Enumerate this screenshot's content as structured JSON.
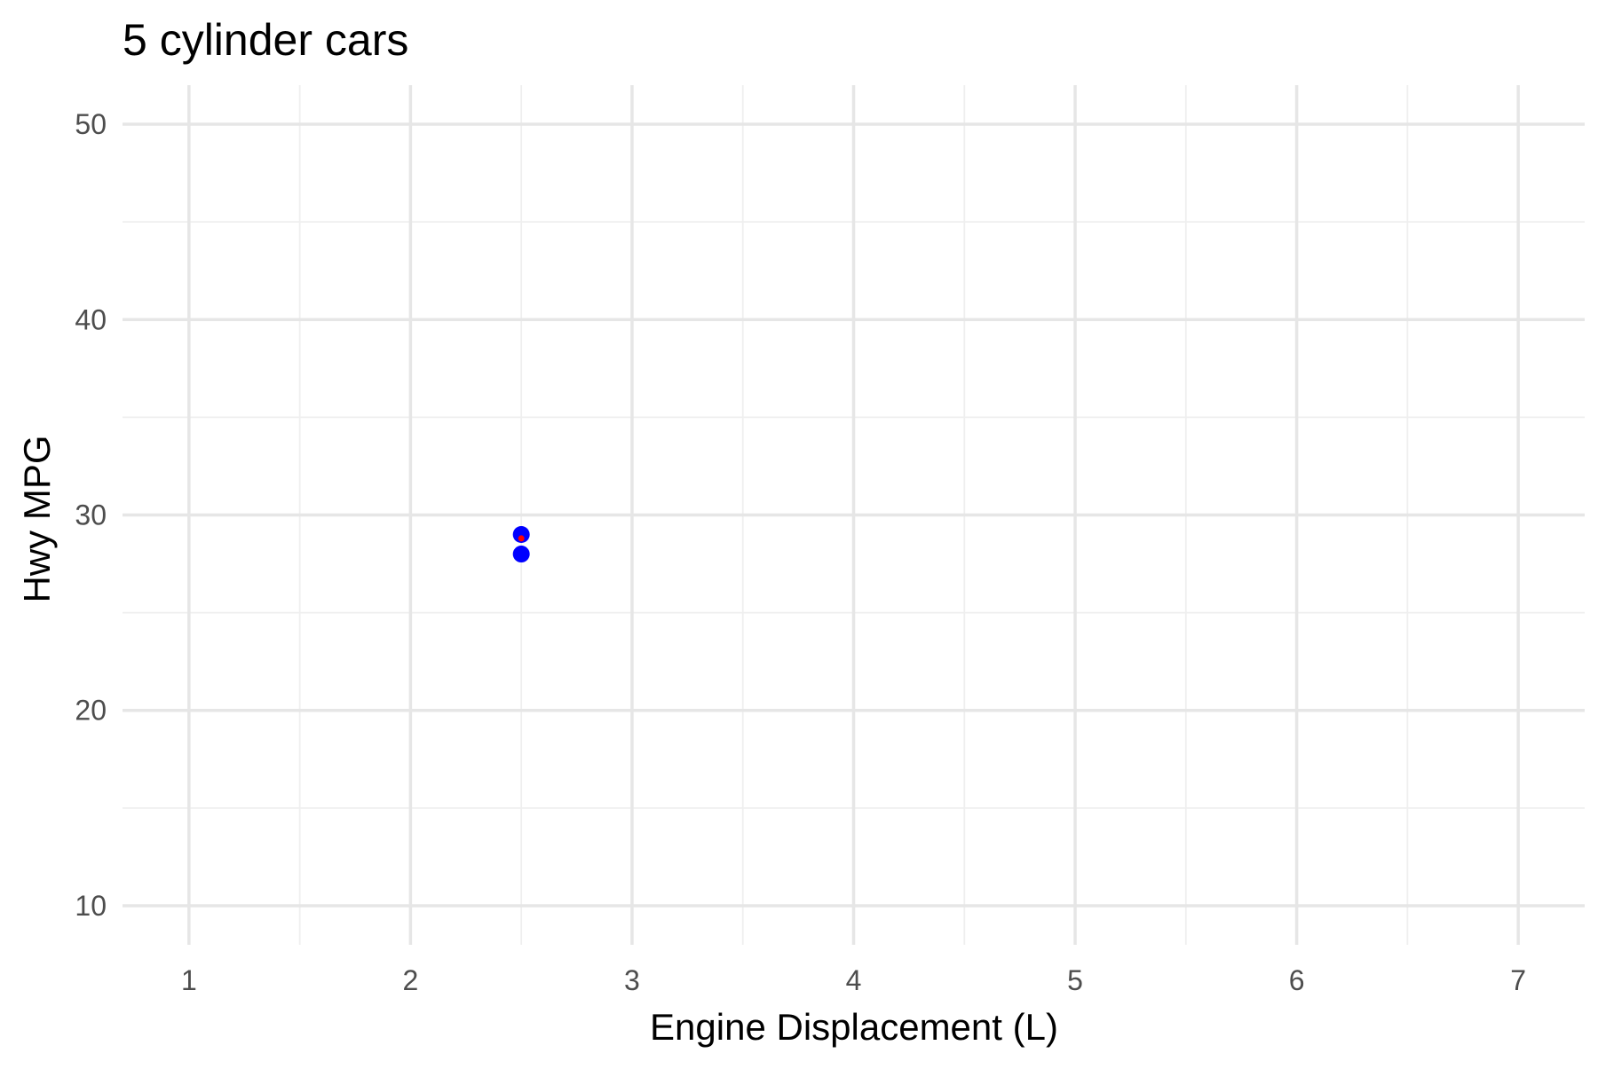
{
  "chart_data": {
    "type": "scatter",
    "title": "5 cylinder cars",
    "xlabel": "Engine Displacement (L)",
    "ylabel": "Hwy MPG",
    "xlim": [
      0.7,
      7.3
    ],
    "ylim": [
      8,
      52
    ],
    "xticks": [
      1,
      2,
      3,
      4,
      5,
      6,
      7
    ],
    "xtick_labels": [
      "1",
      "2",
      "3",
      "4",
      "5",
      "6",
      "7"
    ],
    "yticks": [
      10,
      20,
      30,
      40,
      50
    ],
    "ytick_labels": [
      "10",
      "20",
      "30",
      "40",
      "50"
    ],
    "xminor": [
      1.5,
      2.5,
      3.5,
      4.5,
      5.5,
      6.5
    ],
    "yminor": [
      15,
      25,
      35,
      45
    ],
    "grid": true,
    "legend": "none",
    "series": [
      {
        "color": "#0000ff",
        "points": [
          {
            "x": 2.5,
            "y": 29
          },
          {
            "x": 2.5,
            "y": 28
          }
        ]
      },
      {
        "color": "#ff0000",
        "marker": "small",
        "points": [
          {
            "x": 2.5,
            "y": 28.8
          }
        ]
      }
    ]
  }
}
